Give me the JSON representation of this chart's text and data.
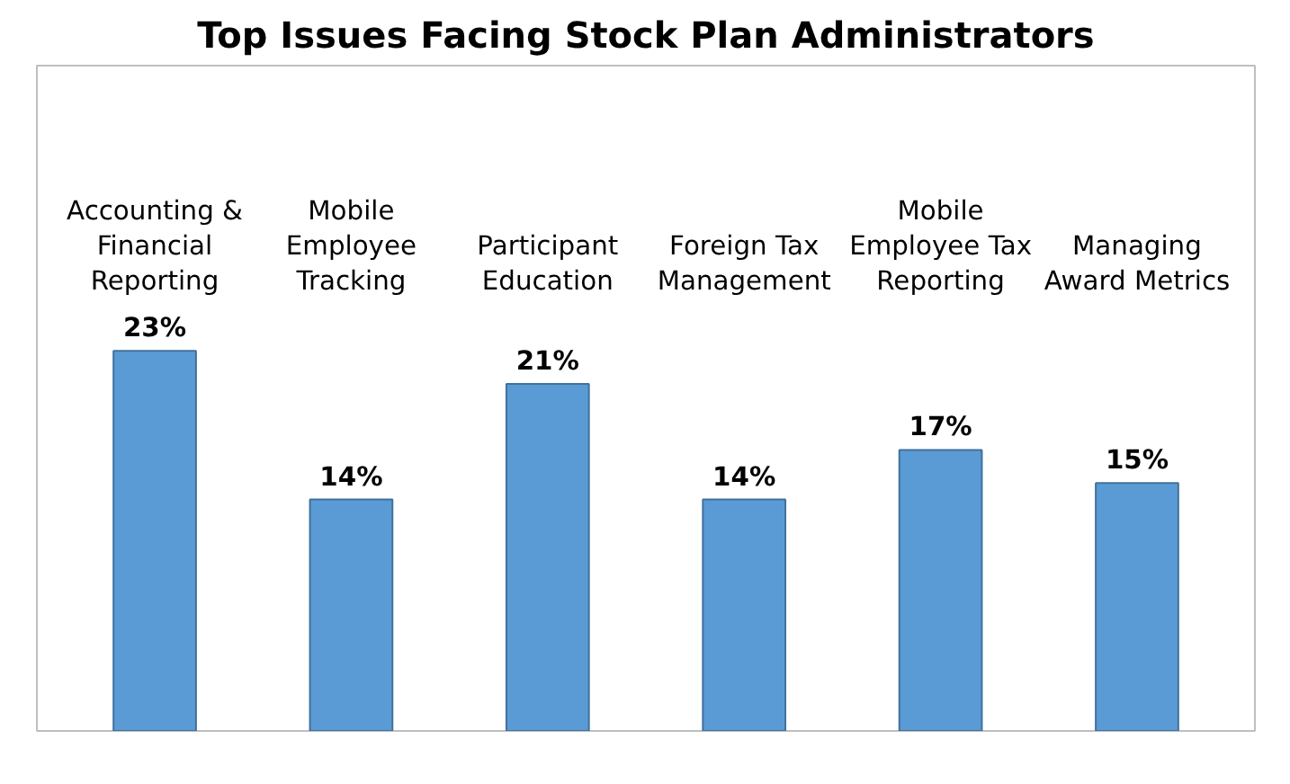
{
  "chart_data": {
    "type": "bar",
    "title": "Top Issues Facing Stock Plan Administrators",
    "categories": [
      "Accounting & Financial Reporting",
      "Mobile Employee Tracking",
      "Participant Education",
      "Foreign Tax Management",
      "Mobile Employee Tax Reporting",
      "Managing Award Metrics"
    ],
    "values": [
      23,
      14,
      21,
      14,
      17,
      15
    ],
    "value_labels": [
      "23%",
      "14%",
      "21%",
      "14%",
      "17%",
      "15%"
    ],
    "color": "#5b9bd5"
  }
}
